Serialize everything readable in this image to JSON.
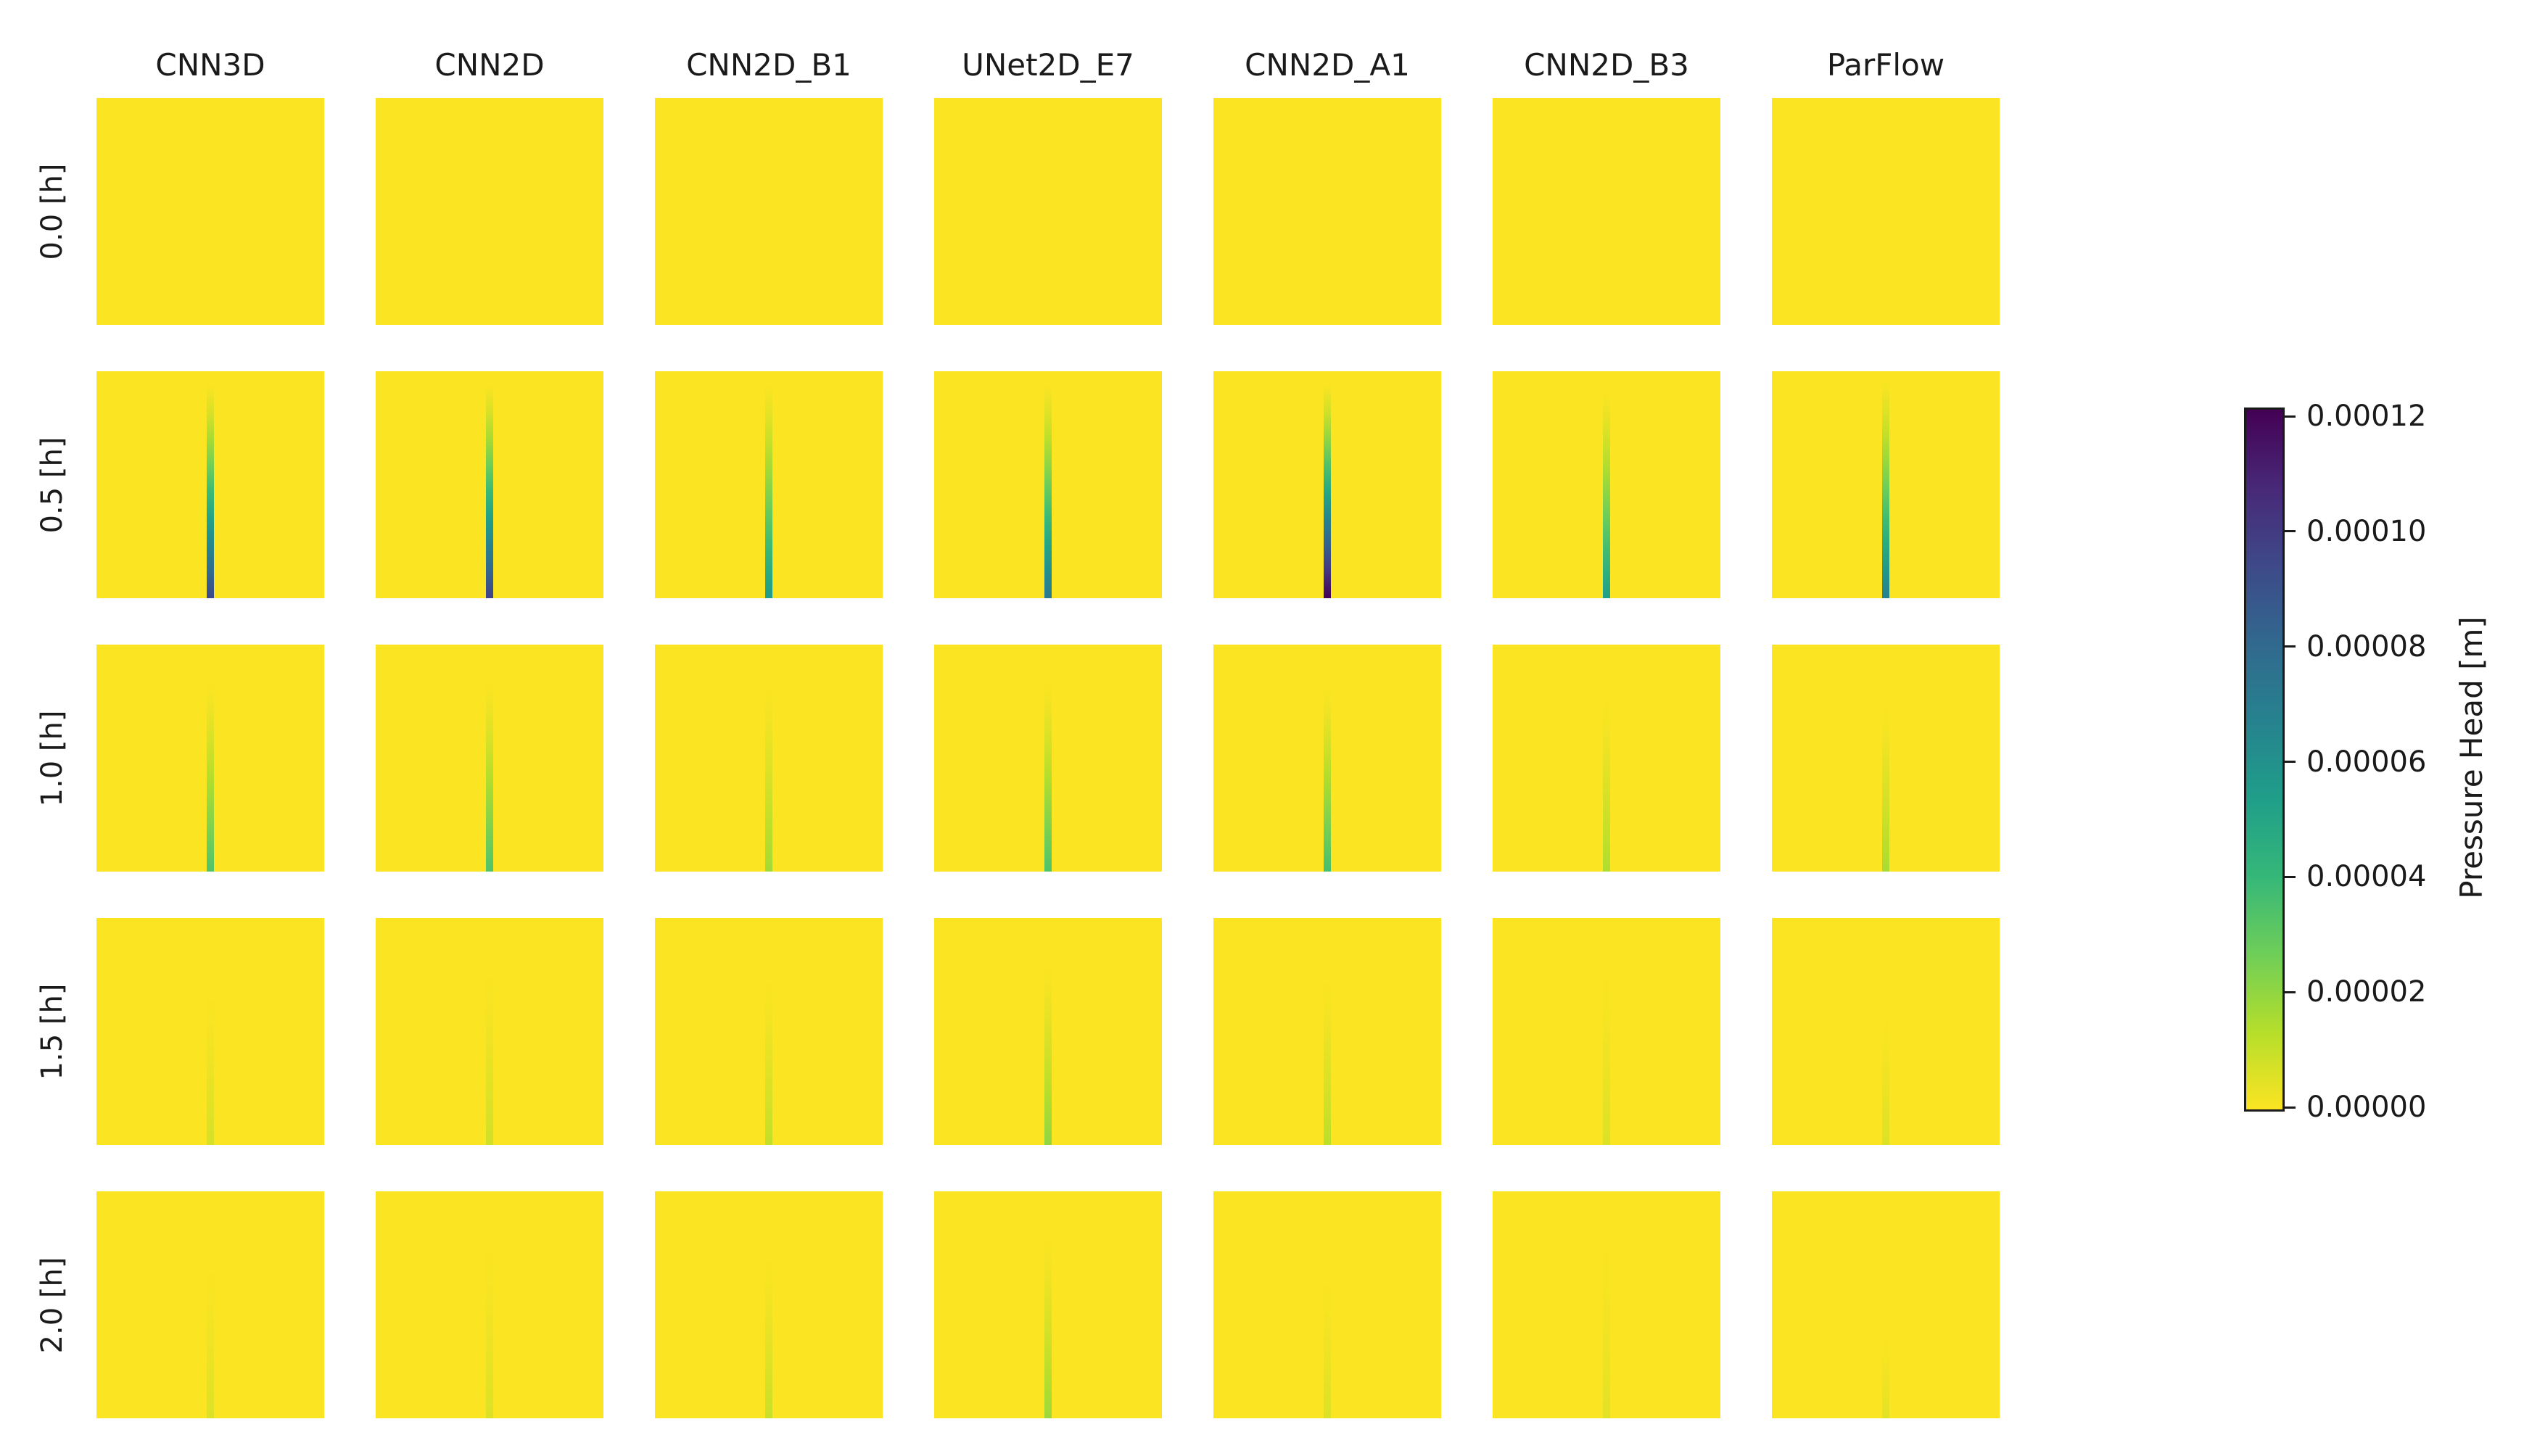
{
  "figure": {
    "kind": "model-comparison pressure head heatmap grid",
    "background": "#ffffff"
  },
  "columns": [
    "CNN3D",
    "CNN2D",
    "CNN2D_B1",
    "UNet2D_E7",
    "CNN2D_A1",
    "CNN2D_B3",
    "ParFlow"
  ],
  "rows": [
    "0.0 [h]",
    "0.5 [h]",
    "1.0 [h]",
    "1.5 [h]",
    "2.0 [h]"
  ],
  "colorbar": {
    "label": "Pressure Head [m]",
    "ticks": [
      "0.00012",
      "0.00010",
      "0.00008",
      "0.00006",
      "0.00004",
      "0.00002",
      "0.00000"
    ]
  },
  "colors": {
    "text": "#1a1a1a",
    "heatmap_background": "#fbe422",
    "viridis_r": [
      "#fbe422",
      "#b5de2b",
      "#6ece58",
      "#35b779",
      "#1f9e89",
      "#26828e",
      "#31688e",
      "#3e4989",
      "#482878",
      "#440154"
    ]
  },
  "chart_data": {
    "type": "heatmap",
    "subtype": "small-multiples grid (7 models x 5 time steps)",
    "title": "",
    "columns": [
      "CNN3D",
      "CNN2D",
      "CNN2D_B1",
      "UNet2D_E7",
      "CNN2D_A1",
      "CNN2D_B3",
      "ParFlow"
    ],
    "rows": [
      "0.0 [h]",
      "0.5 [h]",
      "1.0 [h]",
      "1.5 [h]",
      "2.0 [h]"
    ],
    "colormap": "viridis reversed: yellow = 0, dark purple = max",
    "vmin": 0.0,
    "vmax": 0.00012,
    "colorbar_label": "Pressure Head [m]",
    "colorbar_ticks": [
      0.00012,
      0.0001,
      8e-05,
      6e-05,
      4e-05,
      2e-05,
      0.0
    ],
    "legend_position": "right vertical colorbar",
    "description": "Each panel is a square heatmap of pressure head. Background is uniformly ~0 (yellow). A thin vertical infiltration streak at the horizontal center of each panel grows in value toward the panel bottom. Streak intensity (peak pressure head at panel bottom, in meters) per time step and model is given in cells.",
    "cells": [
      [
        {
          "streak_top_frac": 0.0,
          "cmap_pos": 0.0,
          "peak_value": 0.0
        },
        {
          "streak_top_frac": 0.0,
          "cmap_pos": 0.0,
          "peak_value": 0.0
        },
        {
          "streak_top_frac": 0.0,
          "cmap_pos": 0.0,
          "peak_value": 0.0
        },
        {
          "streak_top_frac": 0.0,
          "cmap_pos": 0.0,
          "peak_value": 0.0
        },
        {
          "streak_top_frac": 0.0,
          "cmap_pos": 0.0,
          "peak_value": 0.0
        },
        {
          "streak_top_frac": 0.0,
          "cmap_pos": 0.0,
          "peak_value": 0.0
        },
        {
          "streak_top_frac": 0.0,
          "cmap_pos": 0.0,
          "peak_value": 0.0
        }
      ],
      [
        {
          "streak_top_frac": 0.06,
          "cmap_pos": 0.78,
          "peak_value": 9.4e-05
        },
        {
          "streak_top_frac": 0.06,
          "cmap_pos": 0.8,
          "peak_value": 9.6e-05
        },
        {
          "streak_top_frac": 0.06,
          "cmap_pos": 0.46,
          "peak_value": 5.5e-05
        },
        {
          "streak_top_frac": 0.06,
          "cmap_pos": 0.6,
          "peak_value": 7.2e-05
        },
        {
          "streak_top_frac": 0.06,
          "cmap_pos": 1.0,
          "peak_value": 0.000122
        },
        {
          "streak_top_frac": 0.1,
          "cmap_pos": 0.44,
          "peak_value": 5.3e-05
        },
        {
          "streak_top_frac": 0.04,
          "cmap_pos": 0.56,
          "peak_value": 6.7e-05
        }
      ],
      [
        {
          "streak_top_frac": 0.18,
          "cmap_pos": 0.28,
          "peak_value": 3.4e-05
        },
        {
          "streak_top_frac": 0.18,
          "cmap_pos": 0.28,
          "peak_value": 3.4e-05
        },
        {
          "streak_top_frac": 0.2,
          "cmap_pos": 0.14,
          "peak_value": 1.7e-05
        },
        {
          "streak_top_frac": 0.18,
          "cmap_pos": 0.28,
          "peak_value": 3.4e-05
        },
        {
          "streak_top_frac": 0.2,
          "cmap_pos": 0.3,
          "peak_value": 3.6e-05
        },
        {
          "streak_top_frac": 0.25,
          "cmap_pos": 0.12,
          "peak_value": 1.4e-05
        },
        {
          "streak_top_frac": 0.28,
          "cmap_pos": 0.13,
          "peak_value": 1.6e-05
        }
      ],
      [
        {
          "streak_top_frac": 0.35,
          "cmap_pos": 0.06,
          "peak_value": 7e-06
        },
        {
          "streak_top_frac": 0.25,
          "cmap_pos": 0.07,
          "peak_value": 8e-06
        },
        {
          "streak_top_frac": 0.28,
          "cmap_pos": 0.09,
          "peak_value": 1.1e-05
        },
        {
          "streak_top_frac": 0.22,
          "cmap_pos": 0.17,
          "peak_value": 2e-05
        },
        {
          "streak_top_frac": 0.28,
          "cmap_pos": 0.1,
          "peak_value": 1.2e-05
        },
        {
          "streak_top_frac": 0.25,
          "cmap_pos": 0.05,
          "peak_value": 6e-06
        },
        {
          "streak_top_frac": 0.45,
          "cmap_pos": 0.05,
          "peak_value": 6e-06
        }
      ],
      [
        {
          "streak_top_frac": 0.35,
          "cmap_pos": 0.05,
          "peak_value": 6e-06
        },
        {
          "streak_top_frac": 0.25,
          "cmap_pos": 0.05,
          "peak_value": 6e-06
        },
        {
          "streak_top_frac": 0.3,
          "cmap_pos": 0.08,
          "peak_value": 1e-05
        },
        {
          "streak_top_frac": 0.22,
          "cmap_pos": 0.15,
          "peak_value": 1.8e-05
        },
        {
          "streak_top_frac": 0.4,
          "cmap_pos": 0.05,
          "peak_value": 6e-06
        },
        {
          "streak_top_frac": 0.25,
          "cmap_pos": 0.04,
          "peak_value": 5e-06
        },
        {
          "streak_top_frac": 0.65,
          "cmap_pos": 0.04,
          "peak_value": 5e-06
        }
      ]
    ]
  }
}
